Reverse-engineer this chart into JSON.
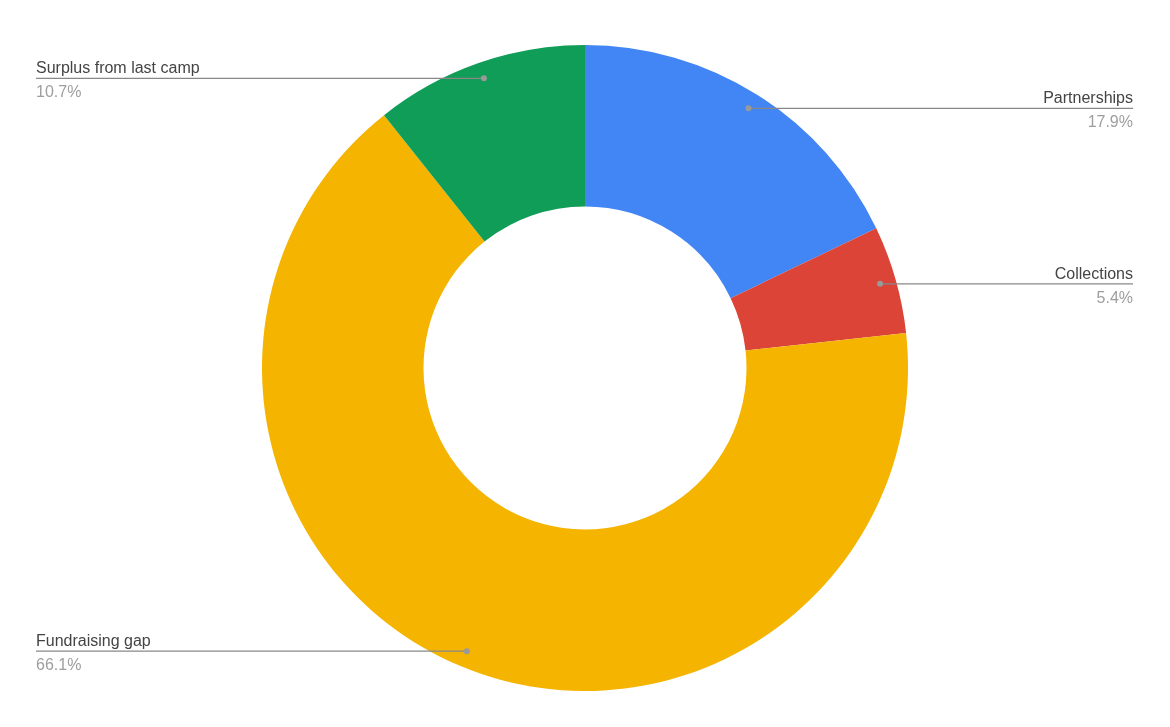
{
  "chart_data": {
    "type": "donut",
    "categories": [
      "Partnerships",
      "Collections",
      "Fundraising gap",
      "Surplus from last camp"
    ],
    "values": [
      17.9,
      5.4,
      66.1,
      10.7
    ],
    "colors": [
      "#4285f4",
      "#db4437",
      "#f4b400",
      "#0f9d58"
    ],
    "value_labels": [
      "17.9%",
      "5.4%",
      "66.1%",
      "10.7%"
    ],
    "legend": false
  }
}
